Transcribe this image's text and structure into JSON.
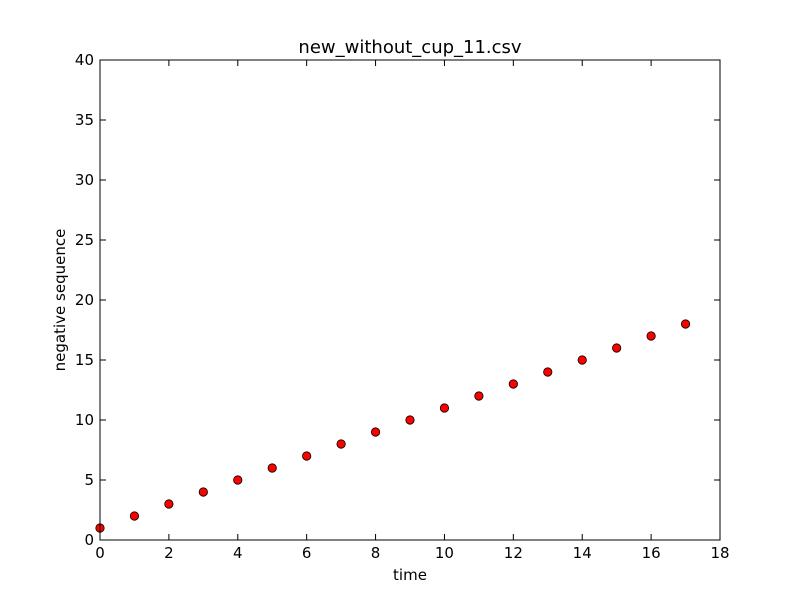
{
  "chart_data": {
    "type": "scatter",
    "title": "new_without_cup_11.csv",
    "xlabel": "time",
    "ylabel": "negative sequence",
    "xlim": [
      0,
      18
    ],
    "ylim": [
      0,
      40
    ],
    "xticks": [
      0,
      2,
      4,
      6,
      8,
      10,
      12,
      14,
      16,
      18
    ],
    "yticks": [
      0,
      5,
      10,
      15,
      20,
      25,
      30,
      35,
      40
    ],
    "grid": false,
    "legend": "none",
    "marker_color": "#ff0000",
    "marker_edge_color": "#000000",
    "series": [
      {
        "x": [
          0,
          1,
          2,
          3,
          4,
          5,
          6,
          7,
          8,
          9,
          10,
          11,
          12,
          13,
          14,
          15,
          16,
          17
        ],
        "y": [
          1,
          2,
          3,
          4,
          5,
          6,
          7,
          8,
          9,
          10,
          11,
          12,
          13,
          14,
          15,
          16,
          17,
          18
        ]
      }
    ]
  }
}
